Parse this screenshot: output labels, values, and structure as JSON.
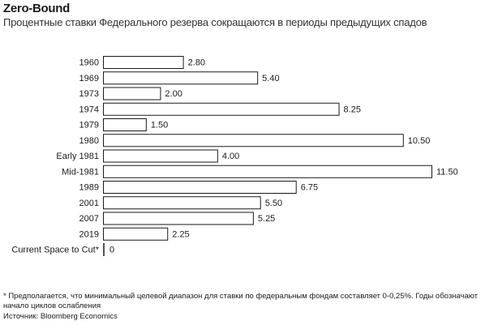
{
  "header": {
    "title": "Zero-Bound",
    "subtitle": "Процентные ставки Федерального резерва сокращаются в периоды предыдущих спадов"
  },
  "chart_data": {
    "type": "bar",
    "orientation": "horizontal",
    "categories": [
      "1960",
      "1969",
      "1973",
      "1974",
      "1979",
      "1980",
      "Early 1981",
      "Mid-1981",
      "1989",
      "2001",
      "2007",
      "2019",
      "Current Space to Cut*"
    ],
    "values": [
      2.8,
      5.4,
      2.0,
      8.25,
      1.5,
      10.5,
      4.0,
      11.5,
      6.75,
      5.5,
      5.25,
      2.25,
      0
    ],
    "value_labels": [
      "2.80",
      "5.40",
      "2.00",
      "8.25",
      "1.50",
      "10.50",
      "4.00",
      "11.50",
      "6.75",
      "5.50",
      "5.25",
      "2.25",
      "0"
    ],
    "xlim": [
      0,
      11.5
    ],
    "grid": false,
    "bar_fill": "#ffffff",
    "bar_stroke": "#1a1a1a"
  },
  "footer": {
    "footnote": "* Предполагается, что минимальный целевой диапазон для ставки по федеральным фондам составляет 0-0,25%. Годы обозначают начало циклов ослабления",
    "source": "Источник: Bloomberg Economics"
  }
}
